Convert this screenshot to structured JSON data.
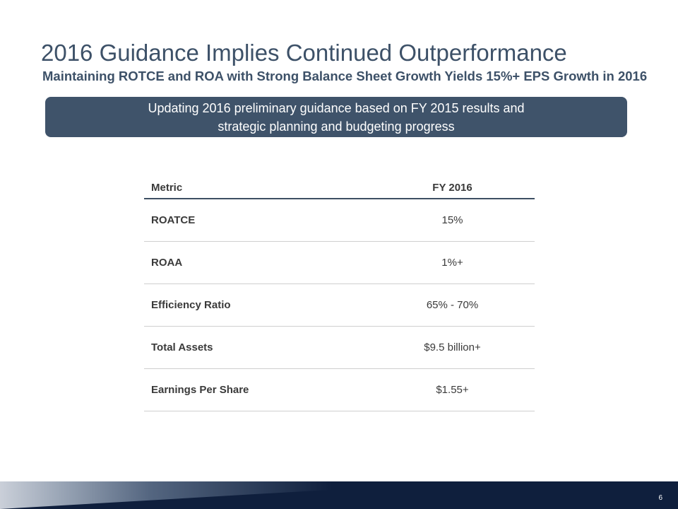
{
  "slide": {
    "title": "2016 Guidance Implies Continued Outperformance",
    "subtitle": "Maintaining ROTCE and ROA with Strong Balance Sheet Growth Yields 15%+ EPS Growth in 2016",
    "banner": {
      "line1": "Updating 2016 preliminary guidance based on FY 2015 results and",
      "line2": "strategic planning and budgeting progress"
    },
    "table": {
      "headers": [
        "Metric",
        "FY 2016"
      ],
      "rows": [
        {
          "metric": "ROATCE",
          "value": "15%"
        },
        {
          "metric": "ROAA",
          "value": "1%+"
        },
        {
          "metric": "Efficiency Ratio",
          "value": "65% - 70%"
        },
        {
          "metric": "Total Assets",
          "value": "$9.5 billion+"
        },
        {
          "metric": "Earnings Per Share",
          "value": "$1.55+"
        }
      ]
    },
    "page_number": "6"
  },
  "colors": {
    "title": "#3d5168",
    "banner_bg": "#3f536a",
    "footer_bg": "#0f1f3d"
  }
}
